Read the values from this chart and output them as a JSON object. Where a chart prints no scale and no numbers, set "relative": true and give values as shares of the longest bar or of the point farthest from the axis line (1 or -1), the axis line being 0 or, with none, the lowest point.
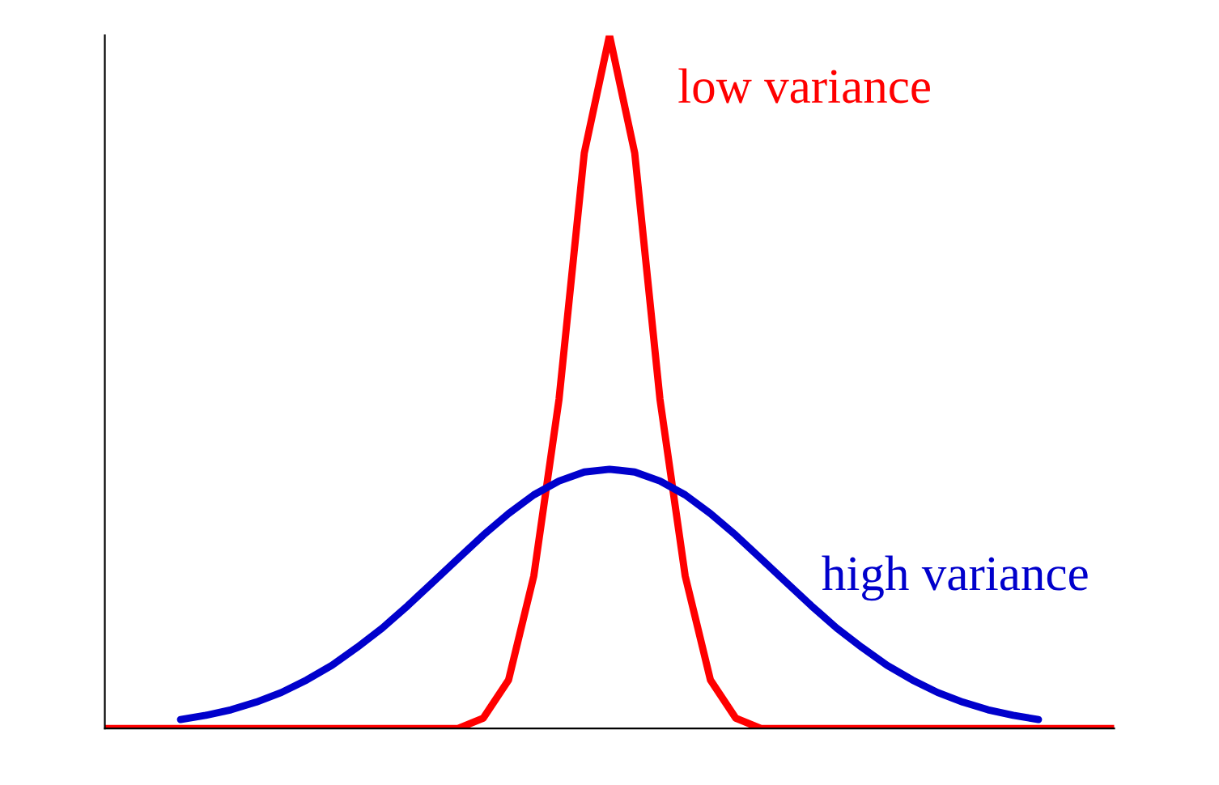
{
  "chart_data": {
    "type": "line",
    "relative": true,
    "categories": [
      null,
      null,
      null,
      null,
      null,
      null,
      null,
      null,
      null,
      null,
      null,
      null,
      null,
      null,
      null,
      null,
      null,
      null,
      null,
      null,
      null,
      null,
      null,
      null,
      null,
      null,
      null,
      null,
      null,
      null,
      null,
      null,
      null,
      null,
      null,
      null,
      null,
      null,
      null,
      null,
      null
    ],
    "series": [
      {
        "name": "low variance",
        "color": "#ff0000",
        "values": [
          0,
          0,
          0,
          0,
          0,
          0,
          0,
          0,
          0,
          0,
          0,
          0,
          0,
          0,
          0,
          0.015,
          0.07,
          0.22,
          0.475,
          0.83,
          1,
          0.83,
          0.475,
          0.22,
          0.07,
          0.015,
          0,
          0,
          0,
          0,
          0,
          0,
          0,
          0,
          0,
          0,
          0,
          0,
          0,
          0,
          0
        ]
      },
      {
        "name": "high variance",
        "color": "#0000cc",
        "values": [
          null,
          null,
          null,
          0.013,
          0.019,
          0.027,
          0.038,
          0.052,
          0.07,
          0.091,
          0.117,
          0.145,
          0.177,
          0.211,
          0.245,
          0.279,
          0.31,
          0.337,
          0.357,
          0.37,
          0.374,
          0.37,
          0.357,
          0.337,
          0.31,
          0.279,
          0.245,
          0.211,
          0.177,
          0.145,
          0.117,
          0.091,
          0.07,
          0.052,
          0.038,
          0.027,
          0.019,
          0.013,
          null,
          null,
          null
        ]
      }
    ],
    "line_style": "solid",
    "marker": "none",
    "grid": false,
    "legend": false
  }
}
